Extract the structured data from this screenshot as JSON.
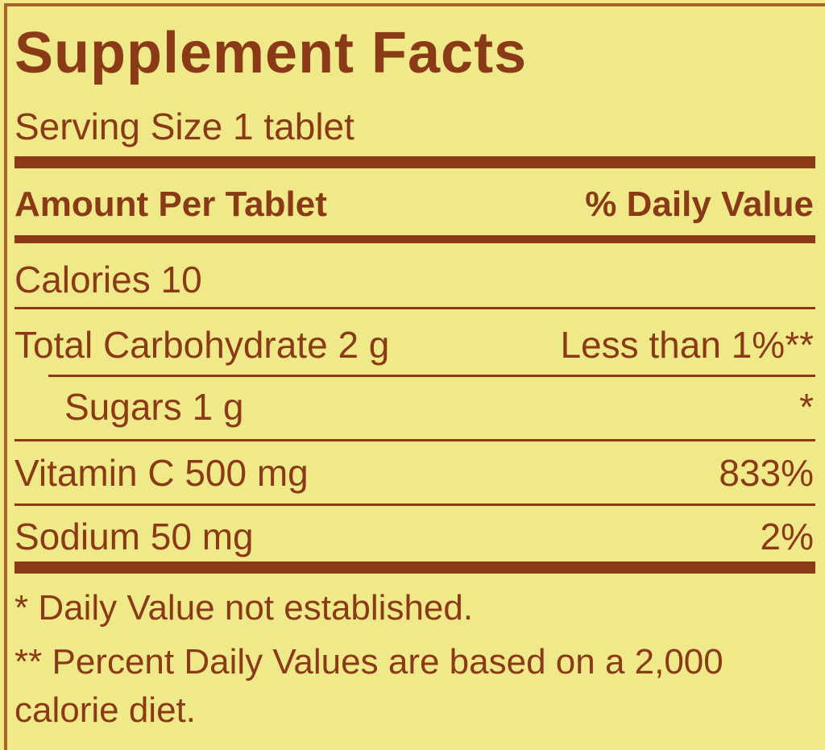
{
  "title": "Supplement Facts",
  "serving_size": "Serving Size 1 tablet",
  "header": {
    "amount": "Amount Per Tablet",
    "dv": "% Daily Value"
  },
  "rows": [
    {
      "label": "Calories 10",
      "dv": ""
    },
    {
      "label": "Total Carbohydrate 2 g",
      "dv": "Less than 1%**"
    },
    {
      "label": "Sugars 1 g",
      "dv": "*"
    },
    {
      "label": "Vitamin C 500 mg",
      "dv": "833%"
    },
    {
      "label": "Sodium 50 mg",
      "dv": "2%"
    }
  ],
  "footnotes": [
    "* Daily Value not established.",
    "** Percent Daily Values are based on a 2,000",
    "calorie diet."
  ],
  "colors": {
    "background": "#efe98a",
    "ink": "#8b3a17"
  }
}
